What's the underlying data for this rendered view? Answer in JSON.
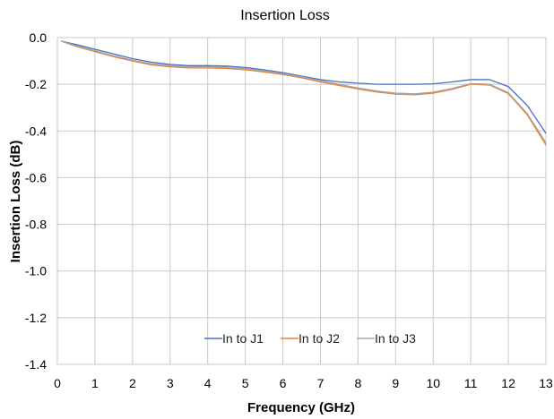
{
  "chart_data": {
    "type": "line",
    "title": "Insertion Loss",
    "xlabel": "Frequency (GHz)",
    "ylabel": "Insertion Loss (dB)",
    "xlim": [
      0,
      13
    ],
    "ylim": [
      -1.4,
      0.0
    ],
    "x_ticks": [
      "0",
      "1",
      "2",
      "3",
      "4",
      "5",
      "6",
      "7",
      "8",
      "9",
      "10",
      "11",
      "12",
      "13"
    ],
    "y_ticks": [
      "0.0",
      "-0.2",
      "-0.4",
      "-0.6",
      "-0.8",
      "-1.0",
      "-1.2",
      "-1.4"
    ],
    "grid": true,
    "legend_position": "bottom-center",
    "series": [
      {
        "name": "In to J1",
        "color": "#4472C4",
        "x": [
          0.1,
          0.5,
          1,
          1.5,
          2,
          2.5,
          3,
          3.5,
          4,
          4.5,
          5,
          5.5,
          6,
          6.5,
          7,
          7.5,
          8,
          8.5,
          9,
          9.5,
          10,
          10.5,
          11,
          11.5,
          12,
          12.5,
          13
        ],
        "y": [
          -0.015,
          -0.03,
          -0.05,
          -0.07,
          -0.09,
          -0.105,
          -0.115,
          -0.12,
          -0.12,
          -0.122,
          -0.128,
          -0.138,
          -0.15,
          -0.165,
          -0.18,
          -0.19,
          -0.195,
          -0.2,
          -0.2,
          -0.2,
          -0.198,
          -0.19,
          -0.18,
          -0.18,
          -0.21,
          -0.29,
          -0.41
        ]
      },
      {
        "name": "In to J2",
        "color": "#ED7D31",
        "x": [
          0.1,
          0.5,
          1,
          1.5,
          2,
          2.5,
          3,
          3.5,
          4,
          4.5,
          5,
          5.5,
          6,
          6.5,
          7,
          7.5,
          8,
          8.5,
          9,
          9.5,
          10,
          10.5,
          11,
          11.5,
          12,
          12.5,
          13
        ],
        "y": [
          -0.015,
          -0.038,
          -0.06,
          -0.082,
          -0.1,
          -0.117,
          -0.125,
          -0.13,
          -0.13,
          -0.132,
          -0.138,
          -0.147,
          -0.158,
          -0.172,
          -0.19,
          -0.205,
          -0.22,
          -0.233,
          -0.242,
          -0.245,
          -0.238,
          -0.222,
          -0.2,
          -0.203,
          -0.24,
          -0.33,
          -0.46
        ]
      },
      {
        "name": "In to J3",
        "color": "#A5A5A5",
        "x": [
          0.1,
          0.5,
          1,
          1.5,
          2,
          2.5,
          3,
          3.5,
          4,
          4.5,
          5,
          5.5,
          6,
          6.5,
          7,
          7.5,
          8,
          8.5,
          9,
          9.5,
          10,
          10.5,
          11,
          11.5,
          12,
          12.5,
          13
        ],
        "y": [
          -0.015,
          -0.035,
          -0.056,
          -0.078,
          -0.097,
          -0.112,
          -0.12,
          -0.125,
          -0.125,
          -0.127,
          -0.133,
          -0.143,
          -0.155,
          -0.168,
          -0.185,
          -0.2,
          -0.216,
          -0.229,
          -0.238,
          -0.241,
          -0.234,
          -0.218,
          -0.197,
          -0.2,
          -0.236,
          -0.325,
          -0.45
        ]
      }
    ]
  }
}
